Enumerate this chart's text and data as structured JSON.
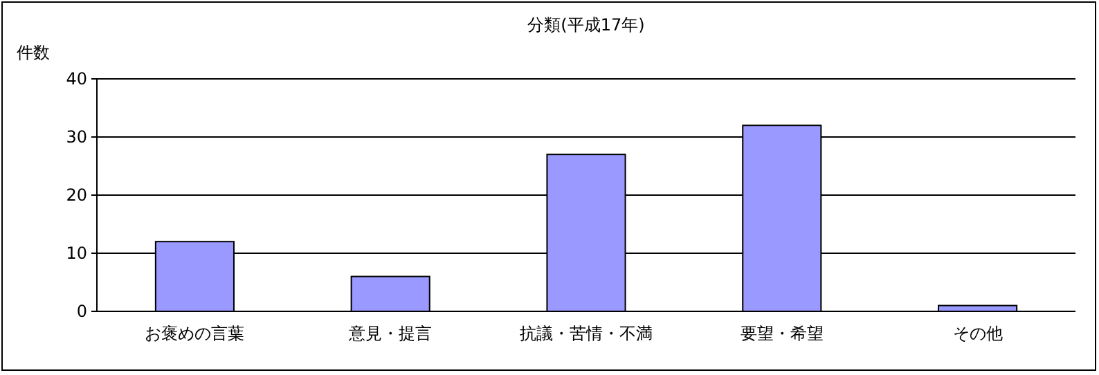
{
  "chart_data": {
    "type": "bar",
    "title": "分類(平成17年)",
    "ylabel": "件数",
    "categories": [
      "お褒めの言葉",
      "意見・提言",
      "抗議・苦情・不満",
      "要望・希望",
      "その他"
    ],
    "values": [
      12,
      6,
      27,
      32,
      1
    ],
    "color": "#9999ff",
    "ylim": [
      0,
      40
    ],
    "yticks": [
      0,
      10,
      20,
      30,
      40
    ],
    "grid": "y"
  }
}
